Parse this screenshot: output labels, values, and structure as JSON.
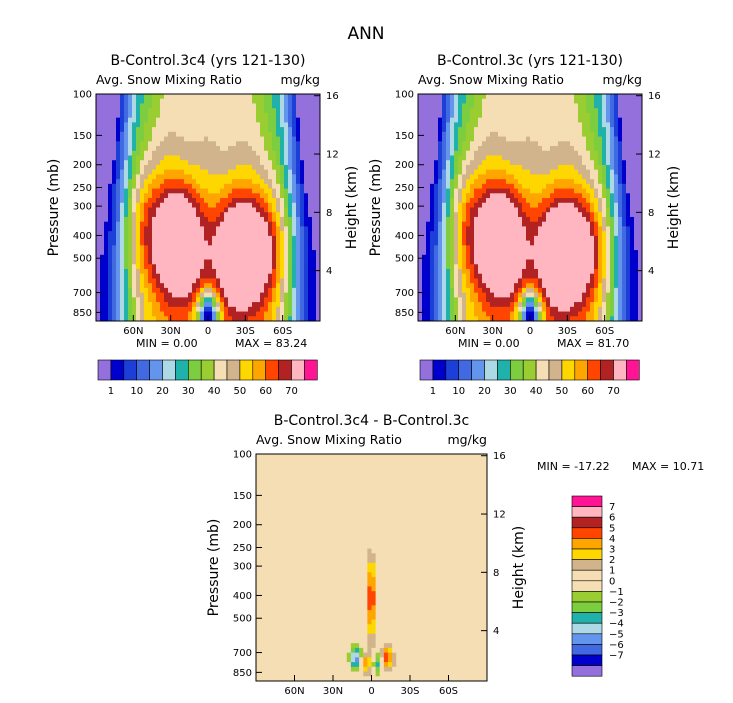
{
  "page_title": "ANN",
  "chart_data": [
    {
      "id": "control_3c4",
      "type": "heatmap",
      "title": "B-Control.3c4 (yrs 121-130)",
      "field_label": "Avg. Snow Mixing Ratio",
      "units": "mg/kg",
      "ylabel": "Pressure (mb)",
      "ylabel_right": "Height (km)",
      "xlim": [
        90,
        -90
      ],
      "x_ticks": [
        "60N",
        "30N",
        "0",
        "30S",
        "60S"
      ],
      "x_tick_values": [
        60,
        30,
        0,
        -30,
        -60
      ],
      "y_ticks": [
        "100",
        "150",
        "200",
        "250",
        "300",
        "400",
        "500",
        "700",
        "850"
      ],
      "y_tick_values": [
        100,
        150,
        200,
        250,
        300,
        400,
        500,
        700,
        850
      ],
      "ylim": [
        100,
        925
      ],
      "height_ticks": [
        "16",
        "12",
        "8",
        "4"
      ],
      "height_tick_values": [
        16,
        12,
        8,
        4
      ],
      "min_text": "MIN =    0.00",
      "max_text": "MAX =   83.24",
      "min": 0.0,
      "max": 83.24,
      "contour_levels": [
        1,
        5,
        10,
        15,
        20,
        25,
        30,
        35,
        40,
        45,
        50,
        55,
        60,
        65,
        70
      ],
      "legend_labels": [
        "1",
        "10",
        "20",
        "30",
        "40",
        "50",
        "60",
        "70"
      ],
      "colors": [
        "#9370db",
        "#0000cd",
        "#1c3fd8",
        "#4169e1",
        "#6495ed",
        "#add8e6",
        "#20b2aa",
        "#7ccd3f",
        "#9acd32",
        "#f5deb3",
        "#d2b48c",
        "#ffd700",
        "#ffa500",
        "#ff4500",
        "#b22222",
        "#ffb6c1",
        "#ff1493"
      ]
    },
    {
      "id": "control_3c",
      "type": "heatmap",
      "title": "B-Control.3c (yrs 121-130)",
      "field_label": "Avg. Snow Mixing Ratio",
      "units": "mg/kg",
      "ylabel": "Pressure (mb)",
      "ylabel_right": "Height (km)",
      "xlim": [
        90,
        -90
      ],
      "x_ticks": [
        "60N",
        "30N",
        "0",
        "30S",
        "60S"
      ],
      "x_tick_values": [
        60,
        30,
        0,
        -30,
        -60
      ],
      "y_ticks": [
        "100",
        "150",
        "200",
        "250",
        "300",
        "400",
        "500",
        "700",
        "850"
      ],
      "y_tick_values": [
        100,
        150,
        200,
        250,
        300,
        400,
        500,
        700,
        850
      ],
      "ylim": [
        100,
        925
      ],
      "height_ticks": [
        "16",
        "12",
        "8",
        "4"
      ],
      "height_tick_values": [
        16,
        12,
        8,
        4
      ],
      "min_text": "MIN =    0.00",
      "max_text": "MAX =   81.70",
      "min": 0.0,
      "max": 81.7,
      "contour_levels": [
        1,
        5,
        10,
        15,
        20,
        25,
        30,
        35,
        40,
        45,
        50,
        55,
        60,
        65,
        70
      ],
      "legend_labels": [
        "1",
        "10",
        "20",
        "30",
        "40",
        "50",
        "60",
        "70"
      ],
      "colors": [
        "#9370db",
        "#0000cd",
        "#1c3fd8",
        "#4169e1",
        "#6495ed",
        "#add8e6",
        "#20b2aa",
        "#7ccd3f",
        "#9acd32",
        "#f5deb3",
        "#d2b48c",
        "#ffd700",
        "#ffa500",
        "#ff4500",
        "#b22222",
        "#ffb6c1",
        "#ff1493"
      ]
    },
    {
      "id": "difference",
      "type": "heatmap",
      "title": "B-Control.3c4 - B-Control.3c",
      "field_label": "Avg. Snow Mixing Ratio",
      "units": "mg/kg",
      "ylabel": "Pressure (mb)",
      "ylabel_right": "Height (km)",
      "xlim": [
        90,
        -90
      ],
      "x_ticks": [
        "60N",
        "30N",
        "0",
        "30S",
        "60S"
      ],
      "x_tick_values": [
        60,
        30,
        0,
        -30,
        -60
      ],
      "y_ticks": [
        "100",
        "150",
        "200",
        "250",
        "300",
        "400",
        "500",
        "700",
        "850"
      ],
      "y_tick_values": [
        100,
        150,
        200,
        250,
        300,
        400,
        500,
        700,
        850
      ],
      "ylim": [
        100,
        925
      ],
      "height_ticks": [
        "16",
        "12",
        "8",
        "4"
      ],
      "height_tick_values": [
        16,
        12,
        8,
        4
      ],
      "min_text": "MIN =  -17.22",
      "max_text": "MAX =   10.71",
      "min": -17.22,
      "max": 10.71,
      "contour_levels": [
        -7,
        -6,
        -5,
        -4,
        -3,
        -2,
        -1,
        0,
        1,
        2,
        3,
        4,
        5,
        6,
        7
      ],
      "legend_labels": [
        "7",
        "6",
        "5",
        "4",
        "3",
        "2",
        "1",
        "0",
        "−1",
        "−2",
        "−3",
        "−4",
        "−5",
        "−6",
        "−7"
      ],
      "colors": [
        "#ff1493",
        "#ffb6c1",
        "#b22222",
        "#ff4500",
        "#ffa500",
        "#ffd700",
        "#d2b48c",
        "#f5deb3",
        "#f5deb3",
        "#9acd32",
        "#7ccd3f",
        "#20b2aa",
        "#add8e6",
        "#6495ed",
        "#4169e1",
        "#0000cd",
        "#9370db"
      ]
    }
  ]
}
